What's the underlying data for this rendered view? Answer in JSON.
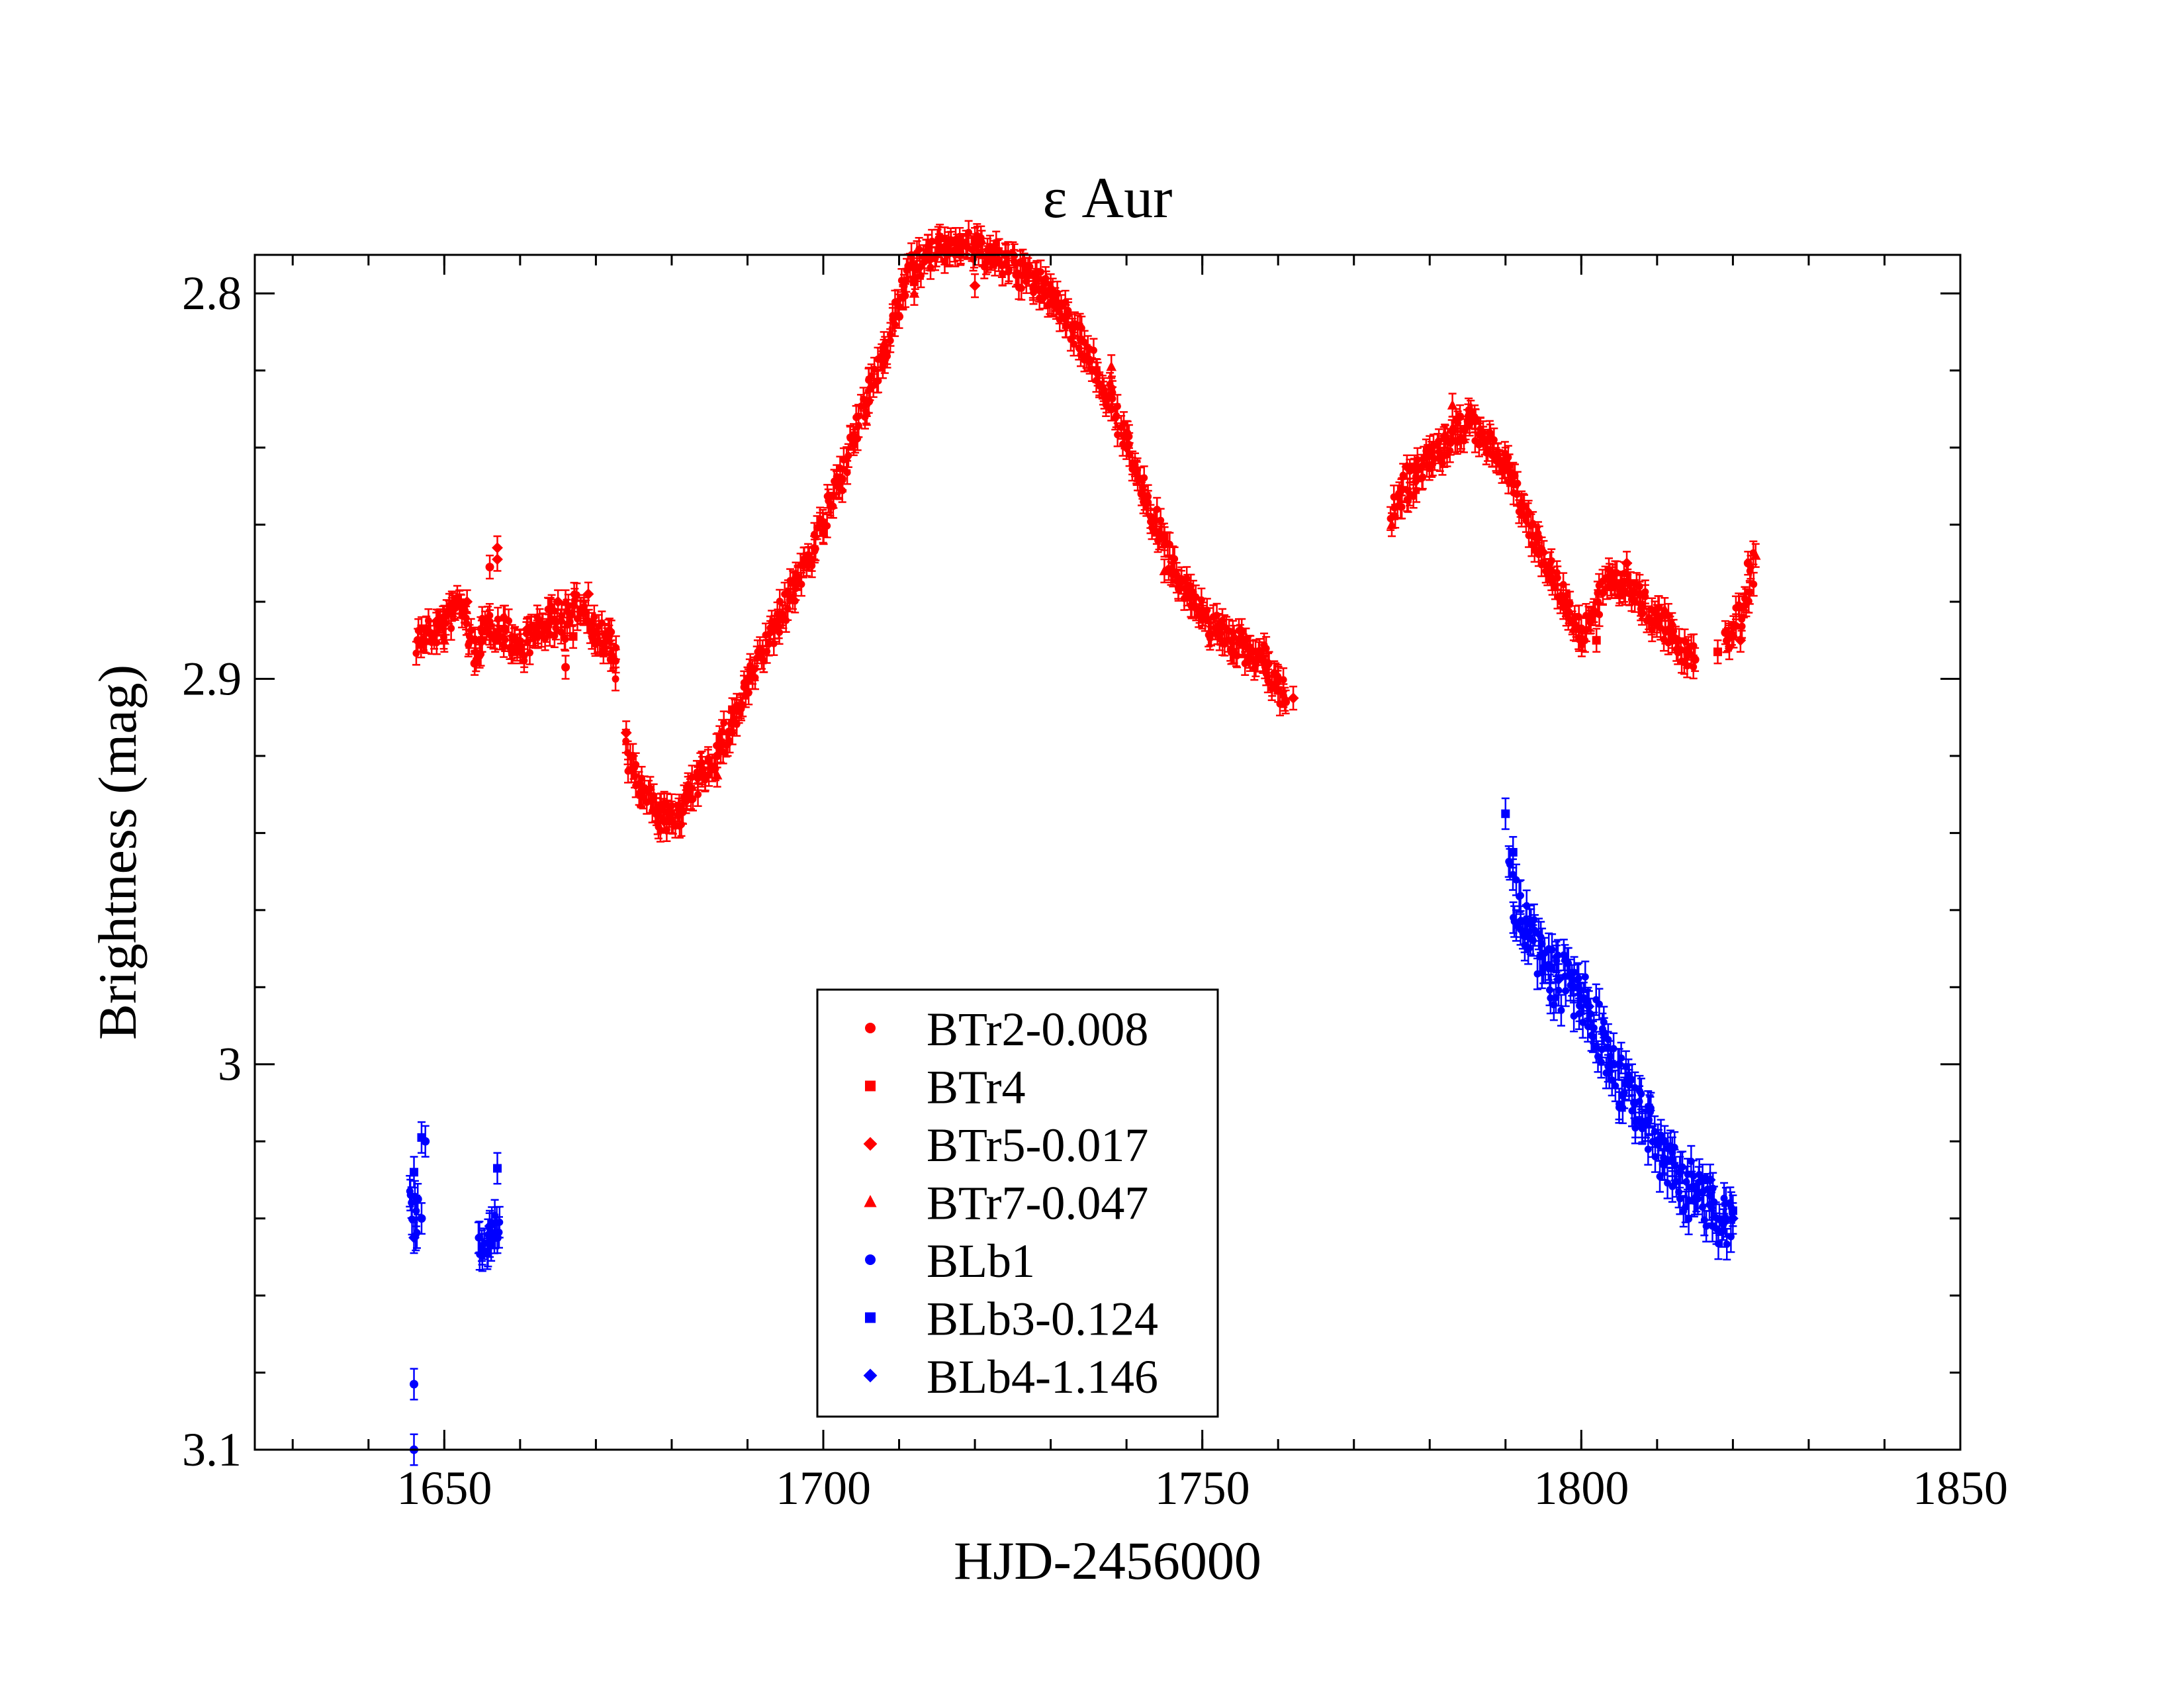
{
  "chart_data": {
    "type": "scatter",
    "title": "ε Aur",
    "xlabel": "HJD-2456000",
    "ylabel": "Brightness (mag)",
    "xlim": [
      1625,
      1850
    ],
    "ylim": [
      3.1,
      2.79
    ],
    "y_inverted": true,
    "x_ticks": [
      1650,
      1700,
      1750,
      1800,
      1850
    ],
    "x_tick_labels": [
      "1650",
      "1700",
      "1750",
      "1800",
      "1850"
    ],
    "y_ticks": [
      2.8,
      2.9,
      3.0,
      3.1
    ],
    "y_tick_labels": [
      "2.8",
      "2.9",
      "3",
      "3.1"
    ],
    "x_minor_step": 10,
    "y_minor_step": 0.02,
    "grid": false,
    "legend_position": "lower-center",
    "colors": {
      "red": "#ff0000",
      "blue": "#0000ff",
      "axis": "#000000"
    },
    "series": [
      {
        "name": "BTr2-0.008",
        "marker": "circle",
        "color": "#ff0000",
        "points": [
          [
            1646.5,
            2.89
          ],
          [
            1648,
            2.888
          ],
          [
            1650,
            2.884
          ],
          [
            1652,
            2.88
          ],
          [
            1654,
            2.896
          ],
          [
            1656,
            2.871
          ],
          [
            1658,
            2.887
          ],
          [
            1660,
            2.893
          ],
          [
            1662,
            2.889
          ],
          [
            1664,
            2.885
          ],
          [
            1666,
            2.897
          ],
          [
            1668,
            2.882
          ],
          [
            1670,
            2.888
          ],
          [
            1672,
            2.895
          ],
          [
            1675,
            2.923
          ],
          [
            1678,
            2.935
          ],
          [
            1680,
            2.937
          ],
          [
            1682,
            2.93
          ],
          [
            1686,
            2.92
          ],
          [
            1690,
            2.9
          ],
          [
            1694,
            2.885
          ],
          [
            1698,
            2.868
          ],
          [
            1702,
            2.85
          ],
          [
            1706,
            2.828
          ],
          [
            1710,
            2.806
          ],
          [
            1714,
            2.791
          ],
          [
            1718,
            2.786
          ],
          [
            1722,
            2.788
          ],
          [
            1726,
            2.792
          ],
          [
            1730,
            2.8
          ],
          [
            1734,
            2.812
          ],
          [
            1738,
            2.83
          ],
          [
            1742,
            2.852
          ],
          [
            1746,
            2.872
          ],
          [
            1750,
            2.884
          ],
          [
            1754,
            2.893
          ],
          [
            1758,
            2.895
          ],
          [
            1761,
            2.906
          ],
          [
            1776,
            2.852
          ],
          [
            1780,
            2.84
          ],
          [
            1784,
            2.832
          ],
          [
            1788,
            2.837
          ],
          [
            1792,
            2.855
          ],
          [
            1796,
            2.872
          ],
          [
            1800,
            2.887
          ],
          [
            1804,
            2.876
          ],
          [
            1808,
            2.883
          ],
          [
            1812,
            2.889
          ],
          [
            1815,
            2.895
          ],
          [
            1819,
            2.888
          ],
          [
            1822,
            2.87
          ]
        ],
        "err": 0.003
      },
      {
        "name": "BTr4",
        "marker": "square",
        "color": "#ff0000",
        "points": [
          [
            1647,
            2.887
          ],
          [
            1651,
            2.882
          ],
          [
            1655,
            2.89
          ],
          [
            1659,
            2.893
          ],
          [
            1663,
            2.886
          ],
          [
            1667,
            2.889
          ],
          [
            1671,
            2.893
          ],
          [
            1676,
            2.93
          ],
          [
            1681,
            2.933
          ],
          [
            1688,
            2.908
          ],
          [
            1696,
            2.875
          ],
          [
            1704,
            2.839
          ],
          [
            1712,
            2.797
          ],
          [
            1720,
            2.786
          ],
          [
            1728,
            2.795
          ],
          [
            1736,
            2.82
          ],
          [
            1744,
            2.862
          ],
          [
            1752,
            2.888
          ],
          [
            1760,
            2.903
          ],
          [
            1778,
            2.845
          ],
          [
            1786,
            2.833
          ],
          [
            1794,
            2.863
          ],
          [
            1802,
            2.89
          ],
          [
            1810,
            2.885
          ],
          [
            1818,
            2.893
          ]
        ],
        "err": 0.003
      },
      {
        "name": "BTr5-0.017",
        "marker": "diamond",
        "color": "#ff0000",
        "points": [
          [
            1649,
            2.885
          ],
          [
            1653,
            2.88
          ],
          [
            1657,
            2.866
          ],
          [
            1657,
            2.869
          ],
          [
            1661,
            2.887
          ],
          [
            1665,
            2.88
          ],
          [
            1669,
            2.878
          ],
          [
            1674,
            2.914
          ],
          [
            1679,
            2.937
          ],
          [
            1684,
            2.925
          ],
          [
            1692,
            2.893
          ],
          [
            1700,
            2.86
          ],
          [
            1708,
            2.815
          ],
          [
            1716,
            2.788
          ],
          [
            1720,
            2.798
          ],
          [
            1724,
            2.79
          ],
          [
            1732,
            2.806
          ],
          [
            1740,
            2.84
          ],
          [
            1748,
            2.878
          ],
          [
            1756,
            2.892
          ],
          [
            1762,
            2.905
          ],
          [
            1777,
            2.845
          ],
          [
            1782,
            2.837
          ],
          [
            1790,
            2.843
          ],
          [
            1798,
            2.88
          ],
          [
            1806,
            2.87
          ],
          [
            1814,
            2.893
          ],
          [
            1821,
            2.89
          ]
        ],
        "err": 0.003
      },
      {
        "name": "BTr7-0.047",
        "marker": "triangle",
        "color": "#ff0000",
        "points": [
          [
            1650,
            2.89
          ],
          [
            1658,
            2.884
          ],
          [
            1666,
            2.88
          ],
          [
            1672,
            2.893
          ],
          [
            1686,
            2.925
          ],
          [
            1700,
            2.862
          ],
          [
            1708,
            2.813
          ],
          [
            1712,
            2.8
          ],
          [
            1721,
            2.79
          ],
          [
            1730,
            2.798
          ],
          [
            1738,
            2.819
          ],
          [
            1745,
            2.872
          ],
          [
            1755,
            2.889
          ],
          [
            1775,
            2.86
          ],
          [
            1783,
            2.829
          ],
          [
            1789,
            2.842
          ],
          [
            1799,
            2.887
          ],
          [
            1805,
            2.878
          ],
          [
            1811,
            2.882
          ],
          [
            1823,
            2.868
          ]
        ],
        "err": 0.003
      },
      {
        "name": "BLb1",
        "marker": "circle",
        "color": "#0000ff",
        "points": [
          [
            1646,
            3.083
          ],
          [
            1646,
            3.1
          ],
          [
            1646.5,
            3.035
          ],
          [
            1647,
            3.04
          ],
          [
            1647.5,
            3.02
          ],
          [
            1655,
            3.048
          ],
          [
            1656,
            3.046
          ],
          [
            1657,
            3.045
          ],
          [
            1792,
            2.963
          ],
          [
            1795,
            2.975
          ],
          [
            1799,
            2.98
          ],
          [
            1803,
            2.992
          ],
          [
            1807,
            3.01
          ],
          [
            1811,
            3.02
          ],
          [
            1815,
            3.035
          ],
          [
            1819,
            3.04
          ]
        ],
        "err": 0.004
      },
      {
        "name": "BLb3-0.124",
        "marker": "square",
        "color": "#0000ff",
        "points": [
          [
            1646,
            3.028
          ],
          [
            1647,
            3.019
          ],
          [
            1657,
            3.027
          ],
          [
            1790,
            2.935
          ],
          [
            1791,
            2.945
          ],
          [
            1796,
            2.975
          ],
          [
            1800,
            2.983
          ],
          [
            1804,
            3.0
          ],
          [
            1808,
            3.015
          ],
          [
            1812,
            3.025
          ],
          [
            1816,
            3.03
          ],
          [
            1820,
            3.038
          ]
        ],
        "err": 0.004
      },
      {
        "name": "BLb4-1.146",
        "marker": "diamond",
        "color": "#0000ff",
        "points": [
          [
            1646,
            3.045
          ],
          [
            1656,
            3.042
          ],
          [
            1793,
            2.97
          ],
          [
            1797,
            2.978
          ],
          [
            1801,
            2.985
          ],
          [
            1805,
            3.0
          ],
          [
            1809,
            3.012
          ],
          [
            1813,
            3.028
          ],
          [
            1817,
            3.03
          ],
          [
            1820,
            3.04
          ]
        ],
        "err": 0.004
      }
    ],
    "dense_segments": [
      {
        "series": 0,
        "jitter": 0.004,
        "path": [
          [
            1646.5,
            2.89
          ],
          [
            1650,
            2.886
          ],
          [
            1652,
            2.88
          ],
          [
            1654,
            2.893
          ],
          [
            1656,
            2.885
          ],
          [
            1658,
            2.888
          ],
          [
            1660,
            2.892
          ],
          [
            1662,
            2.888
          ],
          [
            1664,
            2.885
          ],
          [
            1666,
            2.886
          ],
          [
            1668,
            2.88
          ],
          [
            1670,
            2.888
          ],
          [
            1672,
            2.89
          ],
          [
            1673,
            2.9
          ]
        ]
      },
      {
        "series": 0,
        "jitter": 0.004,
        "path": [
          [
            1674,
            2.92
          ],
          [
            1676,
            2.929
          ],
          [
            1678,
            2.935
          ],
          [
            1680,
            2.937
          ],
          [
            1682,
            2.932
          ],
          [
            1684,
            2.925
          ],
          [
            1688,
            2.912
          ],
          [
            1692,
            2.893
          ],
          [
            1696,
            2.877
          ],
          [
            1700,
            2.86
          ],
          [
            1704,
            2.838
          ],
          [
            1708,
            2.815
          ],
          [
            1711,
            2.795
          ],
          [
            1714,
            2.79
          ],
          [
            1718,
            2.787
          ],
          [
            1722,
            2.79
          ],
          [
            1726,
            2.795
          ],
          [
            1730,
            2.8
          ],
          [
            1734,
            2.812
          ],
          [
            1738,
            2.828
          ],
          [
            1742,
            2.85
          ],
          [
            1746,
            2.87
          ],
          [
            1750,
            2.884
          ],
          [
            1754,
            2.89
          ],
          [
            1758,
            2.895
          ],
          [
            1761,
            2.905
          ]
        ]
      },
      {
        "series": 0,
        "jitter": 0.004,
        "path": [
          [
            1775,
            2.855
          ],
          [
            1778,
            2.848
          ],
          [
            1782,
            2.84
          ],
          [
            1785,
            2.833
          ],
          [
            1788,
            2.84
          ],
          [
            1790,
            2.843
          ],
          [
            1792,
            2.855
          ],
          [
            1795,
            2.868
          ],
          [
            1798,
            2.88
          ],
          [
            1800,
            2.888
          ],
          [
            1802,
            2.882
          ],
          [
            1804,
            2.872
          ],
          [
            1806,
            2.875
          ],
          [
            1808,
            2.88
          ],
          [
            1810,
            2.885
          ],
          [
            1812,
            2.888
          ],
          [
            1814,
            2.895
          ],
          [
            1815,
            2.893
          ]
        ]
      },
      {
        "series": 0,
        "jitter": 0.004,
        "path": [
          [
            1819,
            2.89
          ],
          [
            1821,
            2.883
          ],
          [
            1823,
            2.87
          ]
        ]
      },
      {
        "series": 4,
        "jitter": 0.006,
        "path": [
          [
            1645.5,
            3.028
          ],
          [
            1646,
            3.04
          ],
          [
            1646.5,
            3.047
          ]
        ]
      },
      {
        "series": 4,
        "jitter": 0.004,
        "path": [
          [
            1654.5,
            3.048
          ],
          [
            1656,
            3.045
          ],
          [
            1657.5,
            3.04
          ]
        ]
      },
      {
        "series": 4,
        "jitter": 0.008,
        "path": [
          [
            1790.5,
            2.95
          ],
          [
            1792,
            2.963
          ],
          [
            1795,
            2.975
          ],
          [
            1798,
            2.98
          ],
          [
            1801,
            2.985
          ],
          [
            1804,
            3.0
          ],
          [
            1807,
            3.01
          ],
          [
            1810,
            3.022
          ],
          [
            1813,
            3.03
          ],
          [
            1816,
            3.035
          ],
          [
            1819,
            3.04
          ],
          [
            1820,
            3.042
          ]
        ]
      }
    ]
  }
}
